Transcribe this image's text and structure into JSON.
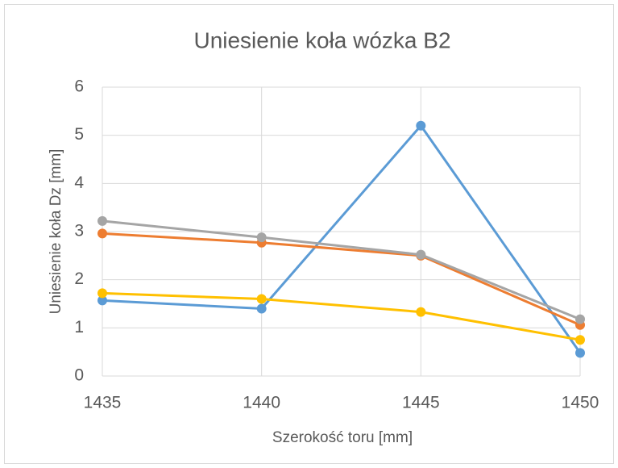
{
  "chart_data": {
    "type": "line",
    "title": "Uniesienie koła wózka B2",
    "x_label": "Szerokość toru [mm]",
    "y_label": "Uniesienie  koła Dz [mm]",
    "x": [
      1435,
      1440,
      1445,
      1450
    ],
    "series": [
      {
        "color": "#5b9bd5",
        "values": [
          1.57,
          1.4,
          5.2,
          0.48
        ]
      },
      {
        "color": "#ed7d31",
        "values": [
          2.96,
          2.77,
          2.5,
          1.06
        ]
      },
      {
        "color": "#a5a5a5",
        "values": [
          3.22,
          2.88,
          2.52,
          1.18
        ]
      },
      {
        "color": "#ffc000",
        "values": [
          1.72,
          1.6,
          1.33,
          0.75
        ]
      }
    ],
    "xlim": [
      1435,
      1450
    ],
    "xticks": [
      1435,
      1440,
      1445,
      1450
    ],
    "ylim": [
      0,
      6
    ],
    "yticks": [
      0,
      1,
      2,
      3,
      4,
      5,
      6
    ],
    "grid": true
  }
}
